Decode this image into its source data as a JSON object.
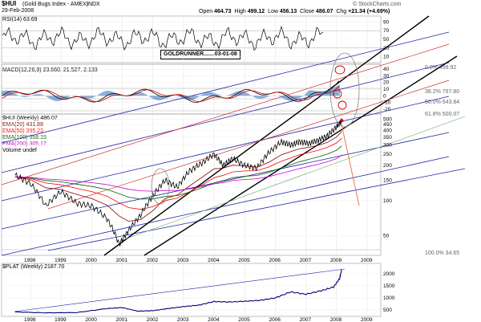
{
  "header": {
    "symbol": "$HUI",
    "name": "(Gold Bugs Index - AMEX)",
    "suffix": "INDX",
    "date": "29-Feb-2008",
    "brand": "© StockCharts.com",
    "quote": {
      "open_label": "Open",
      "open": "464.73",
      "high_label": "High",
      "high": "499.12",
      "low_label": "Low",
      "low": "456.13",
      "close_label": "Close",
      "close": "486.07",
      "chg_label": "Chg",
      "chg": "+21.34 (+4.69%)"
    }
  },
  "annotation": "GOLDRUNNER.......03-01-08",
  "colors": {
    "ema20": "#8b0000",
    "ema50": "#ff0000",
    "ema100": "#006400",
    "ema200": "#cc00cc",
    "price": "#000000",
    "plat": "#00007a",
    "channel": "#0000aa"
  },
  "chart_data": [
    {
      "type": "line",
      "panel": "RSI",
      "legend": [
        "RSI(14) 63.69"
      ],
      "y_ticks": [
        10,
        30,
        50,
        70,
        90
      ],
      "ylim": [
        0,
        100
      ]
    },
    {
      "type": "line",
      "panel": "MACD",
      "legend": [
        "MACD(12,26,9) 23.660, 21.527, 2.133"
      ],
      "y_ticks": [
        -20,
        -10,
        0,
        10,
        20,
        30,
        40
      ],
      "ylim": [
        -25,
        45
      ]
    },
    {
      "type": "line",
      "panel": "Price (log)",
      "legend": [
        "$HUI (Weekly) 486.07",
        "EMA(20) 431.88",
        "EMA(50) 395.23",
        "EMA(100) 358.19",
        "EMA(200) 305.17",
        "Volume undef"
      ],
      "scale": "log",
      "y_ticks": [
        50,
        100,
        150,
        200,
        250,
        300,
        350,
        400,
        450,
        500
      ],
      "ylim": [
        35,
        520
      ],
      "x_ticks": [
        "1998",
        "1999",
        "2000",
        "2001",
        "2002",
        "2003",
        "2004",
        "2005",
        "2006",
        "2007",
        "2008",
        "2009"
      ],
      "x": [
        1997.5,
        1998.0,
        1998.5,
        1999.0,
        1999.5,
        2000.0,
        2000.5,
        2000.9,
        2001.2,
        2001.6,
        2002.0,
        2002.4,
        2002.8,
        2003.2,
        2003.6,
        2004.0,
        2004.3,
        2004.6,
        2005.0,
        2005.4,
        2005.8,
        2006.2,
        2006.5,
        2006.8,
        2007.1,
        2007.4,
        2007.7,
        2008.0,
        2008.17
      ],
      "series": [
        {
          "name": "$HUI (Weekly) 486.07",
          "values": [
            165,
            140,
            90,
            120,
            95,
            90,
            70,
            42,
            55,
            75,
            110,
            150,
            130,
            180,
            210,
            250,
            200,
            230,
            200,
            190,
            260,
            320,
            300,
            320,
            310,
            330,
            360,
            430,
            486
          ]
        }
      ],
      "fib_levels": [
        "0.0% 499.92",
        "38.2% 797.80",
        "50.0% 643.84",
        "61.8% 500.07",
        "100.0% 34.65"
      ]
    },
    {
      "type": "line",
      "panel": "$PLAT",
      "legend": [
        "$PLAT (Weekly) 2187.70"
      ],
      "y_ticks": [
        500,
        1000,
        1500,
        2000
      ],
      "ylim": [
        300,
        2300
      ],
      "x": [
        1997.5,
        1998.5,
        1999.5,
        2000.5,
        2001.0,
        2001.5,
        2002.0,
        2002.5,
        2003.0,
        2003.5,
        2004.0,
        2004.5,
        2005.0,
        2005.5,
        2006.0,
        2006.5,
        2007.0,
        2007.5,
        2007.9,
        2008.1,
        2008.17
      ],
      "series": [
        {
          "name": "$PLAT (Weekly) 2187.70",
          "values": [
            420,
            380,
            390,
            560,
            600,
            450,
            470,
            560,
            640,
            700,
            850,
            830,
            860,
            900,
            1000,
            1250,
            1150,
            1300,
            1450,
            1800,
            2187
          ]
        }
      ]
    }
  ]
}
